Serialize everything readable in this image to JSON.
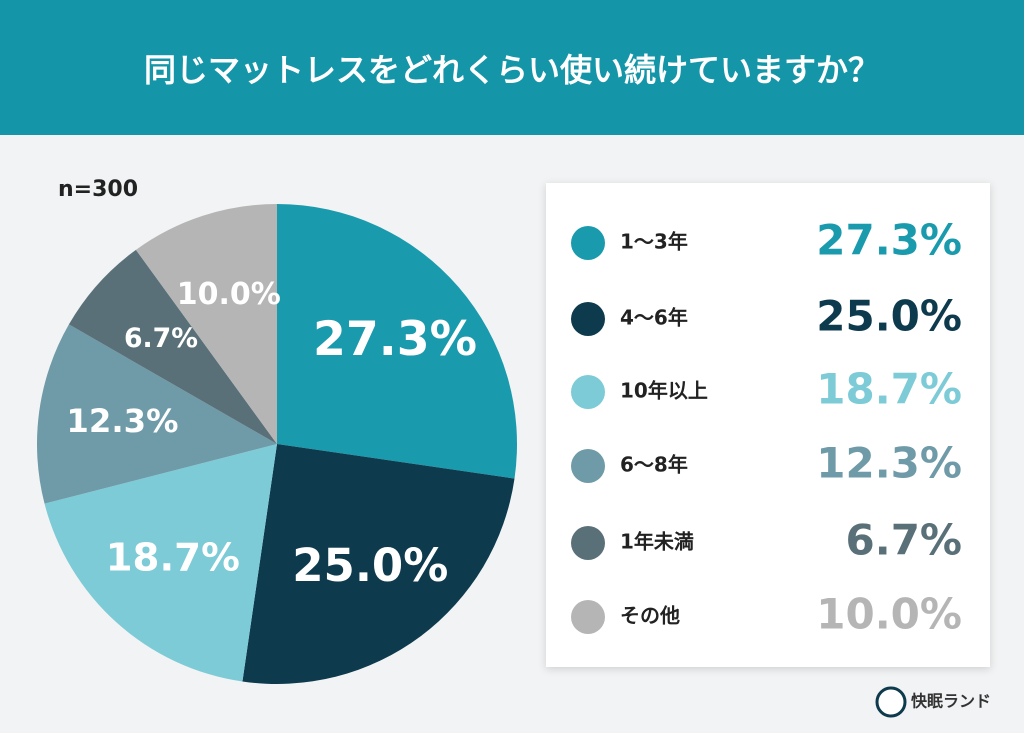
{
  "chart_data": {
    "type": "pie",
    "title": "同じマットレスをどれくらい使い続けていますか？",
    "note": "n=300",
    "categories": [
      "1〜3年",
      "4〜6年",
      "10年以上",
      "6〜8年",
      "1年未満",
      "その他"
    ],
    "values": [
      27.3,
      25.0,
      18.7,
      12.3,
      6.7,
      10.0
    ],
    "value_labels": [
      "27.3%",
      "25.0%",
      "18.7%",
      "12.3%",
      "6.7%",
      "10.0%"
    ],
    "colors": [
      "#1a9aad",
      "#0d3a4d",
      "#7ccbd6",
      "#6f9aa8",
      "#5a7078",
      "#b5b5b5"
    ]
  },
  "brand": "快眠ランド"
}
